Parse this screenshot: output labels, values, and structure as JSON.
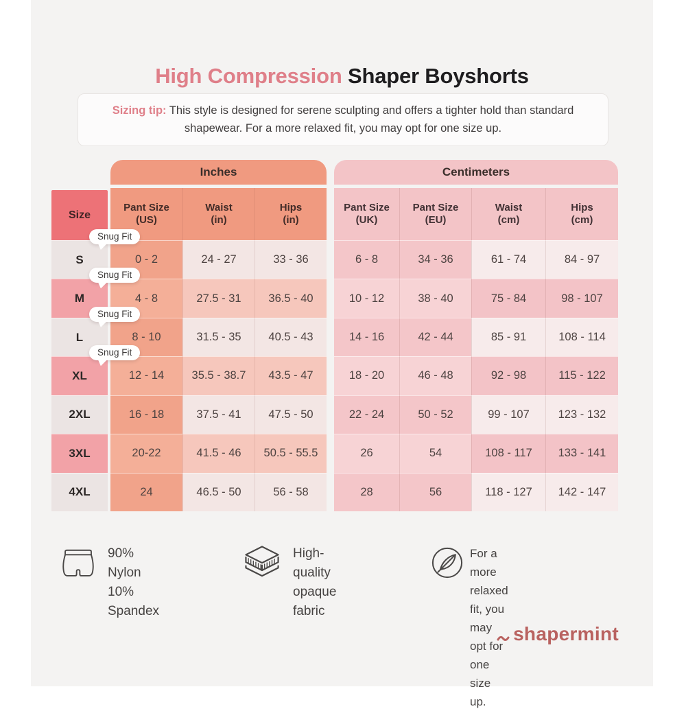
{
  "page": {
    "title_accent": "High Compression",
    "title_rest": " Shaper Boyshorts",
    "tip_label": "Sizing tip:",
    "tip_text": " This style is designed for serene sculpting and offers a tighter hold than standard shapewear. For a more relaxed fit, you may opt for one size up."
  },
  "table": {
    "size_header": "Size",
    "snug_fit_label": "Snug Fit",
    "groups": [
      {
        "label": "Inches",
        "columns": [
          {
            "line1": "Pant Size",
            "line2": "(US)"
          },
          {
            "line1": "Waist",
            "line2": "(in)"
          },
          {
            "line1": "Hips",
            "line2": "(in)"
          }
        ]
      },
      {
        "label": "Centimeters",
        "columns": [
          {
            "line1": "Pant Size",
            "line2": "(UK)"
          },
          {
            "line1": "Pant Size",
            "line2": "(EU)"
          },
          {
            "line1": "Waist",
            "line2": "(cm)"
          },
          {
            "line1": "Hips",
            "line2": "(cm)"
          }
        ]
      }
    ],
    "rows": [
      {
        "size": "S",
        "snug_fit": true,
        "inches": [
          "0 - 2",
          "24 - 27",
          "33 - 36"
        ],
        "cm": [
          "6 - 8",
          "34 - 36",
          "61 - 74",
          "84 - 97"
        ]
      },
      {
        "size": "M",
        "snug_fit": true,
        "inches": [
          "4 - 8",
          "27.5 - 31",
          "36.5 - 40"
        ],
        "cm": [
          "10 - 12",
          "38 - 40",
          "75 - 84",
          "98 - 107"
        ]
      },
      {
        "size": "L",
        "snug_fit": true,
        "inches": [
          "8 - 10",
          "31.5 - 35",
          "40.5 - 43"
        ],
        "cm": [
          "14 - 16",
          "42 - 44",
          "85 - 91",
          "108 - 114"
        ]
      },
      {
        "size": "XL",
        "snug_fit": true,
        "inches": [
          "12 - 14",
          "35.5 - 38.7",
          "43.5 - 47"
        ],
        "cm": [
          "18 - 20",
          "46 - 48",
          "92 - 98",
          "115 - 122"
        ]
      },
      {
        "size": "2XL",
        "snug_fit": false,
        "inches": [
          "16 - 18",
          "37.5 - 41",
          "47.5 - 50"
        ],
        "cm": [
          "22 - 24",
          "50 - 52",
          "99 - 107",
          "123 - 132"
        ]
      },
      {
        "size": "3XL",
        "snug_fit": false,
        "inches": [
          "20-22",
          "41.5 - 46",
          "50.5 - 55.5"
        ],
        "cm": [
          "26",
          "54",
          "108 - 117",
          "133 - 141"
        ]
      },
      {
        "size": "4XL",
        "snug_fit": false,
        "inches": [
          "24",
          "46.5 - 50",
          "56 - 58"
        ],
        "cm": [
          "28",
          "56",
          "118 - 127",
          "142 - 147"
        ]
      }
    ]
  },
  "features": [
    {
      "icon": "boyshorts-icon",
      "lines": [
        "90% Nylon",
        "10% Spandex"
      ]
    },
    {
      "icon": "fabric-layers-icon",
      "lines": [
        "High-quality",
        "opaque fabric"
      ]
    },
    {
      "icon": "feather-icon",
      "lines": [
        "For a more relaxed fit, you",
        "may opt for one size up."
      ]
    }
  ],
  "logo": {
    "text": "shapermint"
  },
  "colors": {
    "bg": "#f4f3f2",
    "accent": "#df7f89",
    "dark": "#1e1d1f",
    "sizeHead": "#ed7277",
    "salmonHead": "#f09a80",
    "pinkHead": "#f3c4c7",
    "oddSize": "#ebe4e3",
    "oddUs": "#f1a38a",
    "oddIn": "#f3e6e4",
    "oddUkeu": "#f4c6c9",
    "oddCm": "#f7ebeb",
    "evenSize": "#f2a2a7",
    "evenUs": "#f4af98",
    "evenIn": "#f6c7bc",
    "evenUkeu": "#f7d3d5",
    "evenCm": "#f3c3c7",
    "cellText": "#4d4341",
    "logo": "#b96260"
  }
}
